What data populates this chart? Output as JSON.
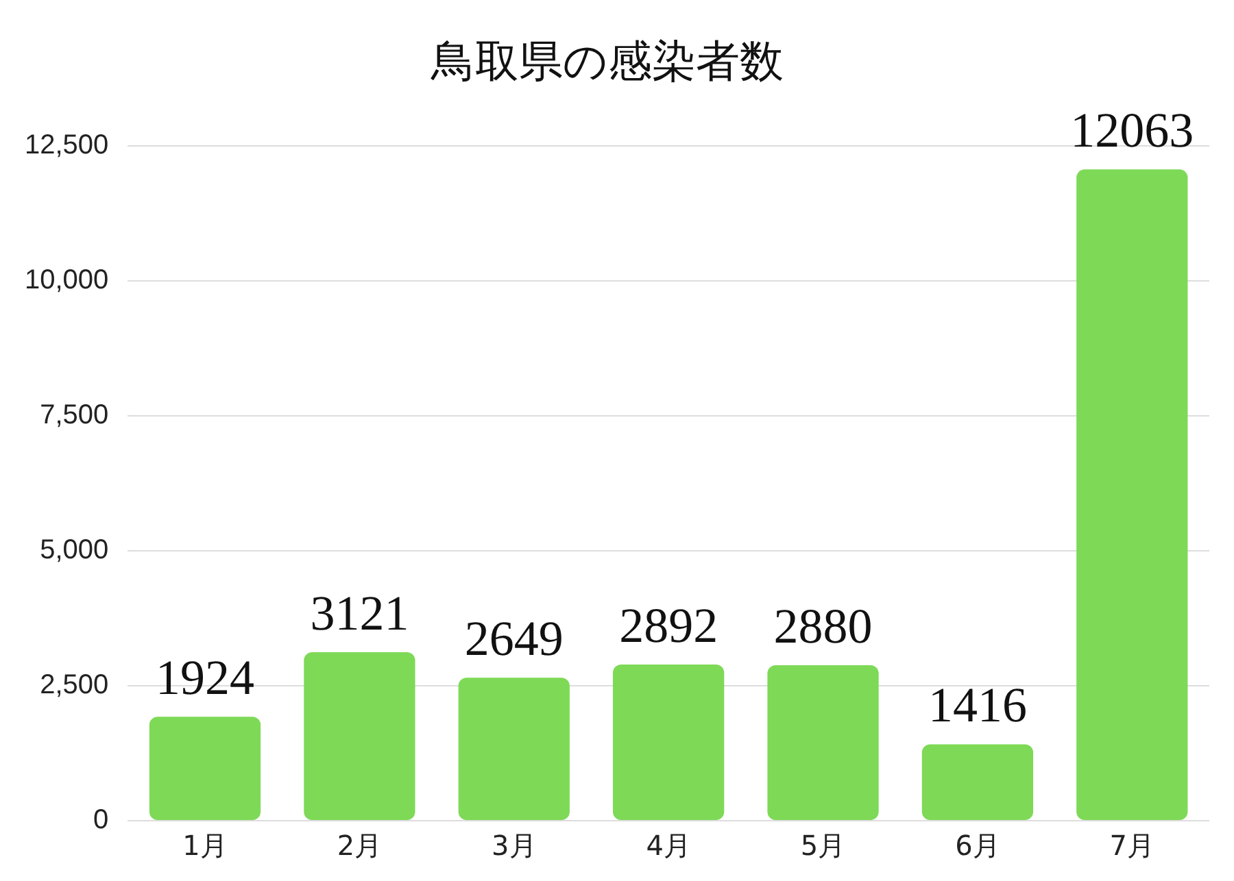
{
  "chart_data": {
    "type": "bar",
    "title": "鳥取県の感染者数",
    "categories": [
      "1月",
      "2月",
      "3月",
      "4月",
      "5月",
      "6月",
      "7月"
    ],
    "values": [
      1924,
      3121,
      2649,
      2892,
      2880,
      1416,
      12063
    ],
    "color": "#7ed957",
    "ylim": [
      0,
      12500
    ],
    "yticks": [
      0,
      {
        "value": 2500,
        "label": "2,500"
      },
      {
        "value": 5000,
        "label": "5,000"
      },
      {
        "value": 7500,
        "label": "7,500"
      },
      {
        "value": 10000,
        "label": "10,000"
      },
      {
        "value": 12500,
        "label": "12,500"
      }
    ],
    "grid": "y",
    "data_labels": true,
    "legend": false
  }
}
